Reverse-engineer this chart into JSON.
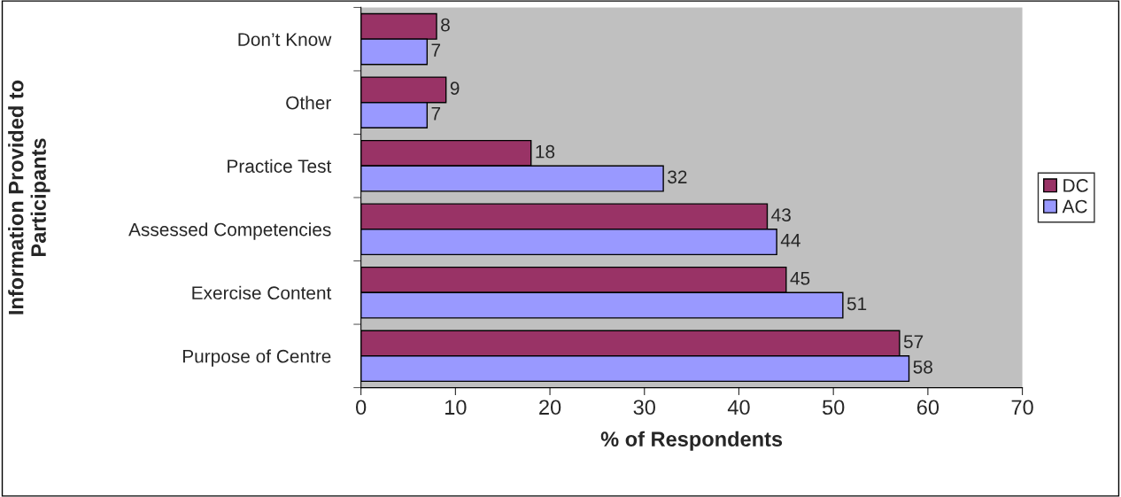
{
  "chart_data": {
    "type": "bar",
    "orientation": "horizontal",
    "xlabel": "% of Respondents",
    "ylabel": "Information Provided to\nParticipants",
    "categories": [
      "Don’t Know",
      "Other",
      "Practice Test",
      "Assessed Competencies",
      "Exercise Content",
      "Purpose of Centre"
    ],
    "series": [
      {
        "name": "DC",
        "color": "#993366",
        "values": [
          8,
          9,
          18,
          43,
          45,
          57
        ]
      },
      {
        "name": "AC",
        "color": "#9999ff",
        "values": [
          7,
          7,
          32,
          44,
          51,
          58
        ]
      }
    ],
    "xlim": [
      0,
      70
    ],
    "xticks": [
      0,
      10,
      20,
      30,
      40,
      50,
      60,
      70
    ],
    "data_labels": true,
    "legend": "right",
    "grid": false
  }
}
